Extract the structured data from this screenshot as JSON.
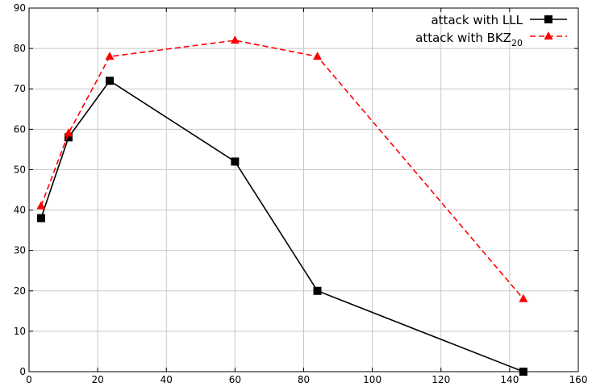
{
  "chart_data": {
    "type": "line",
    "title": "",
    "xlabel": "",
    "ylabel": "",
    "xlim": [
      0,
      160
    ],
    "ylim": [
      0,
      90
    ],
    "xticks": [
      0,
      20,
      40,
      60,
      80,
      100,
      120,
      140,
      160
    ],
    "yticks": [
      0,
      10,
      20,
      30,
      40,
      50,
      60,
      70,
      80,
      90
    ],
    "grid": true,
    "legend": {
      "placement": "top-right"
    },
    "series": [
      {
        "name": "attack with LLL",
        "color": "#000000",
        "line": "solid",
        "marker": "square",
        "x": [
          3.5,
          11.5,
          23.5,
          60,
          84,
          144
        ],
        "y": [
          38,
          58,
          72,
          52,
          20,
          0
        ]
      },
      {
        "name": "attack with BKZ",
        "name_subscript": "20",
        "color": "#ff0000",
        "line": "dashed",
        "marker": "triangle",
        "x": [
          3.5,
          11.5,
          23.5,
          60,
          84,
          144
        ],
        "y": [
          41,
          59,
          78,
          82,
          78,
          18
        ]
      }
    ]
  }
}
